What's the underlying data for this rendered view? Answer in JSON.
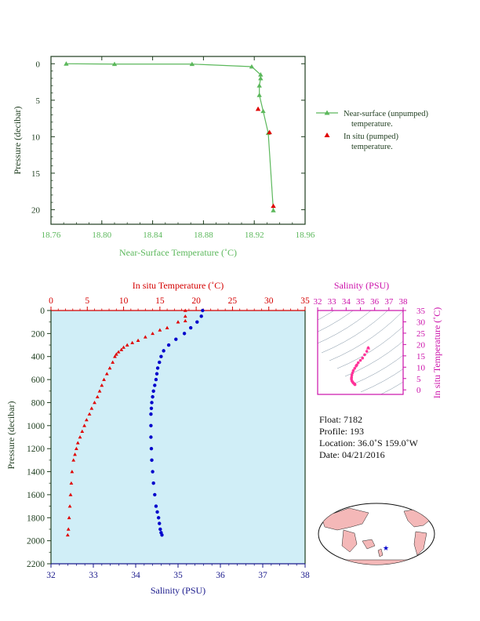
{
  "top_chart": {
    "xlabel": "Near-Surface Temperature (˚C)",
    "ylabel": "Pressure (decibar)",
    "x_ticks": [
      "18.76",
      "18.80",
      "18.84",
      "18.88",
      "18.92",
      "18.96"
    ],
    "y_ticks": [
      "0",
      "5",
      "10",
      "15",
      "20"
    ],
    "legend_unpumped_1": "Near-surface (unpumped)",
    "legend_unpumped_2": "temperature.",
    "legend_pumped_1": "In situ (pumped)",
    "legend_pumped_2": "temperature."
  },
  "bottom_chart": {
    "top_axis_label": "In situ Temperature (˚C)",
    "bottom_axis_label": "Salinity (PSU)",
    "ylabel": "Pressure (decibar)",
    "temp_ticks": [
      "0",
      "5",
      "10",
      "15",
      "20",
      "25",
      "30",
      "35"
    ],
    "sal_ticks": [
      "32",
      "33",
      "34",
      "35",
      "36",
      "37",
      "38"
    ],
    "pres_ticks": [
      "0",
      "200",
      "400",
      "600",
      "800",
      "1000",
      "1200",
      "1400",
      "1600",
      "1800",
      "2000",
      "2200"
    ]
  },
  "ts_chart": {
    "top_label": "Salinity (PSU)",
    "right_label": "In situ Temperature (˚C)",
    "sal_ticks": [
      "32",
      "33",
      "34",
      "35",
      "36",
      "37",
      "38"
    ],
    "temp_ticks": [
      "0",
      "5",
      "10",
      "15",
      "20",
      "25",
      "30",
      "35"
    ]
  },
  "info": {
    "float": "Float:  7182",
    "profile": "Profile:  193",
    "location": "Location:  36.0˚S  159.0˚W",
    "date": "Date:  04/21/2016"
  },
  "colors": {
    "unpumped": "#5cb85c",
    "pumped": "#e00000",
    "salinity": "#0000cc",
    "ts_points": "#ff3399",
    "plot_bg": "#d0eef7"
  },
  "chart_data": [
    {
      "type": "line",
      "xlabel": "Near-Surface Temperature (˚C)",
      "ylabel": "Pressure (decibar)",
      "xlim": [
        18.76,
        18.96
      ],
      "ylim": [
        22,
        -1
      ],
      "series": [
        {
          "name": "Near-surface (unpumped) temperature.",
          "x": [
            18.772,
            18.81,
            18.871,
            18.918,
            18.925,
            18.925,
            18.924,
            18.924,
            18.927,
            18.931,
            18.935
          ],
          "y": [
            0.0,
            0.05,
            0.05,
            0.4,
            1.5,
            2.0,
            3.0,
            4.3,
            6.5,
            9.5,
            20.1
          ]
        },
        {
          "name": "In situ (pumped) temperature.",
          "x": [
            18.923,
            18.932,
            18.935
          ],
          "y": [
            6.2,
            9.4,
            19.5
          ]
        }
      ]
    },
    {
      "type": "scatter",
      "ylabel": "Pressure (decibar)",
      "ylim": [
        2200,
        0
      ],
      "series": [
        {
          "axis": "In situ Temperature (˚C)",
          "xlim": [
            0,
            35
          ],
          "x": [
            18.5,
            18.5,
            18.5,
            17.5,
            16.0,
            15.0,
            14.0,
            13.0,
            12.0,
            11.2,
            10.5,
            10.0,
            9.7,
            9.3,
            9.0,
            8.8,
            8.5,
            8.1,
            7.7,
            7.3,
            7.0,
            6.7,
            6.4,
            6.0,
            5.6,
            5.3,
            4.9,
            4.6,
            4.3,
            4.0,
            3.7,
            3.5,
            3.3,
            3.1,
            2.9,
            2.8,
            2.7,
            2.6,
            2.5,
            2.4,
            2.3
          ],
          "y": [
            0,
            50,
            90,
            100,
            150,
            170,
            200,
            230,
            260,
            280,
            300,
            320,
            340,
            360,
            380,
            400,
            450,
            500,
            550,
            600,
            650,
            700,
            750,
            800,
            850,
            900,
            950,
            1000,
            1050,
            1100,
            1150,
            1200,
            1250,
            1300,
            1400,
            1500,
            1600,
            1700,
            1800,
            1900,
            1950
          ]
        },
        {
          "axis": "Salinity (PSU)",
          "xlim": [
            32,
            38
          ],
          "x": [
            35.58,
            35.55,
            35.45,
            35.3,
            35.15,
            34.95,
            34.78,
            34.66,
            34.6,
            34.56,
            34.52,
            34.5,
            34.48,
            34.45,
            34.42,
            34.4,
            34.38,
            34.37,
            34.36,
            34.36,
            34.36,
            34.37,
            34.38,
            34.4,
            34.42,
            34.45,
            34.48,
            34.51,
            34.54,
            34.56,
            34.58,
            34.6,
            34.62
          ],
          "y": [
            0,
            50,
            100,
            150,
            200,
            250,
            300,
            350,
            400,
            450,
            500,
            550,
            600,
            650,
            700,
            750,
            800,
            850,
            900,
            1000,
            1100,
            1200,
            1300,
            1400,
            1500,
            1600,
            1700,
            1750,
            1800,
            1850,
            1900,
            1930,
            1950
          ]
        }
      ]
    },
    {
      "type": "scatter",
      "xlabel": "Salinity (PSU)",
      "ylabel": "In situ Temperature (˚C)",
      "xlim": [
        32,
        38
      ],
      "ylim": [
        -2,
        35
      ],
      "series": [
        {
          "x": [
            35.55,
            35.45,
            35.3,
            35.15,
            35.0,
            34.85,
            34.75,
            34.7,
            34.6,
            34.5,
            34.45,
            34.4,
            34.38,
            34.37,
            34.4,
            34.45,
            34.5,
            34.55,
            34.6,
            34.62
          ],
          "y": [
            18.5,
            17.0,
            15.5,
            14.0,
            13.0,
            12.0,
            11.0,
            10.5,
            9.5,
            8.5,
            7.5,
            6.5,
            5.5,
            4.8,
            4.0,
            3.5,
            3.1,
            2.8,
            2.5,
            2.3
          ]
        }
      ]
    }
  ]
}
